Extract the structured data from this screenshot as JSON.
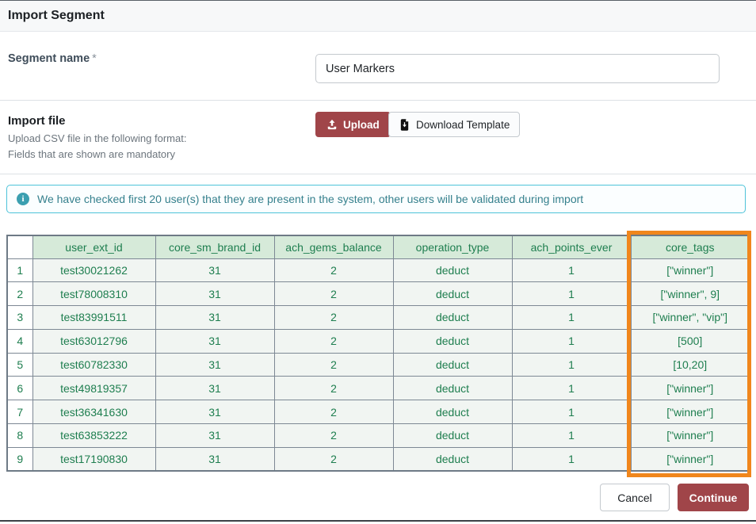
{
  "window": {
    "title": "Import Segment"
  },
  "form": {
    "segment_name": {
      "label": "Segment name",
      "required": "*",
      "value": "User Markers"
    },
    "import_file": {
      "label": "Import file",
      "hint_line1": "Upload CSV file in the following format:",
      "hint_line2": "Fields that are shown are mandatory",
      "upload_button": "Upload",
      "download_button": "Download Template"
    }
  },
  "alert": {
    "text": "We have checked first 20 user(s) that they are present in the system, other users will be validated during import"
  },
  "table": {
    "columns": [
      "",
      "user_ext_id",
      "core_sm_brand_id",
      "ach_gems_balance",
      "operation_type",
      "ach_points_ever",
      "core_tags"
    ],
    "highlighted_column": "core_tags",
    "rows": [
      [
        "1",
        "test30021262",
        "31",
        "2",
        "deduct",
        "1",
        "[\"winner\"]"
      ],
      [
        "2",
        "test78008310",
        "31",
        "2",
        "deduct",
        "1",
        "[\"winner\", 9]"
      ],
      [
        "3",
        "test83991511",
        "31",
        "2",
        "deduct",
        "1",
        "[\"winner\", \"vip\"]"
      ],
      [
        "4",
        "test63012796",
        "31",
        "2",
        "deduct",
        "1",
        "[500]"
      ],
      [
        "5",
        "test60782330",
        "31",
        "2",
        "deduct",
        "1",
        "[10,20]"
      ],
      [
        "6",
        "test49819357",
        "31",
        "2",
        "deduct",
        "1",
        "[\"winner\"]"
      ],
      [
        "7",
        "test36341630",
        "31",
        "2",
        "deduct",
        "1",
        "[\"winner\"]"
      ],
      [
        "8",
        "test63853222",
        "31",
        "2",
        "deduct",
        "1",
        "[\"winner\"]"
      ],
      [
        "9",
        "test17190830",
        "31",
        "2",
        "deduct",
        "1",
        "[\"winner\"]"
      ]
    ]
  },
  "footer": {
    "cancel": "Cancel",
    "continue": "Continue"
  },
  "colors": {
    "accent_red": "#a04549",
    "table_header_bg": "#d6ead9",
    "table_text_green": "#1e7e4f",
    "highlight_orange": "#f0861c",
    "alert_border": "#4ec3d9",
    "alert_text": "#35808d",
    "table_border": "#7d8894"
  }
}
